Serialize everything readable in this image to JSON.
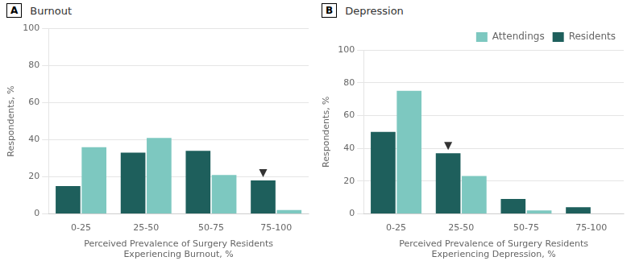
{
  "chart_data": [
    {
      "type": "bar",
      "title": "Burnout",
      "annotations": [
        {
          "text": "A"
        },
        {
          "category": "75-100",
          "series": "Residents",
          "marker": "triangle_down"
        }
      ],
      "categories": [
        "0-25",
        "25-50",
        "50-75",
        "75-100"
      ],
      "series": [
        {
          "name": "Residents",
          "color": "#1E5F5C",
          "values": [
            15,
            33,
            34,
            18
          ]
        },
        {
          "name": "Attendings",
          "color": "#7DC8C0",
          "values": [
            36,
            41,
            21,
            2
          ]
        }
      ],
      "xlabel": "Perceived Prevalence of Surgery Residents\nExperiencing Burnout, %",
      "ylabel": "Respondents, %",
      "ylim": [
        0,
        100
      ],
      "yticks": [
        0,
        20,
        40,
        60,
        80,
        100
      ],
      "grid": true,
      "legend": false
    },
    {
      "type": "bar",
      "title": "Depression",
      "annotations": [
        {
          "text": "B"
        },
        {
          "category": "25-50",
          "series": "Residents",
          "marker": "triangle_down"
        }
      ],
      "categories": [
        "0-25",
        "25-50",
        "50-75",
        "75-100"
      ],
      "series": [
        {
          "name": "Residents",
          "color": "#1E5F5C",
          "values": [
            50,
            37,
            9,
            4
          ]
        },
        {
          "name": "Attendings",
          "color": "#7DC8C0",
          "values": [
            75,
            23,
            2,
            0
          ]
        }
      ],
      "xlabel": "Perceived Prevalence of Surgery Residents\nExperiencing Depression, %",
      "ylabel": "Respondents, %",
      "ylim": [
        0,
        100
      ],
      "yticks": [
        0,
        20,
        40,
        60,
        80,
        100
      ],
      "grid": true,
      "legend": "upper right"
    }
  ]
}
